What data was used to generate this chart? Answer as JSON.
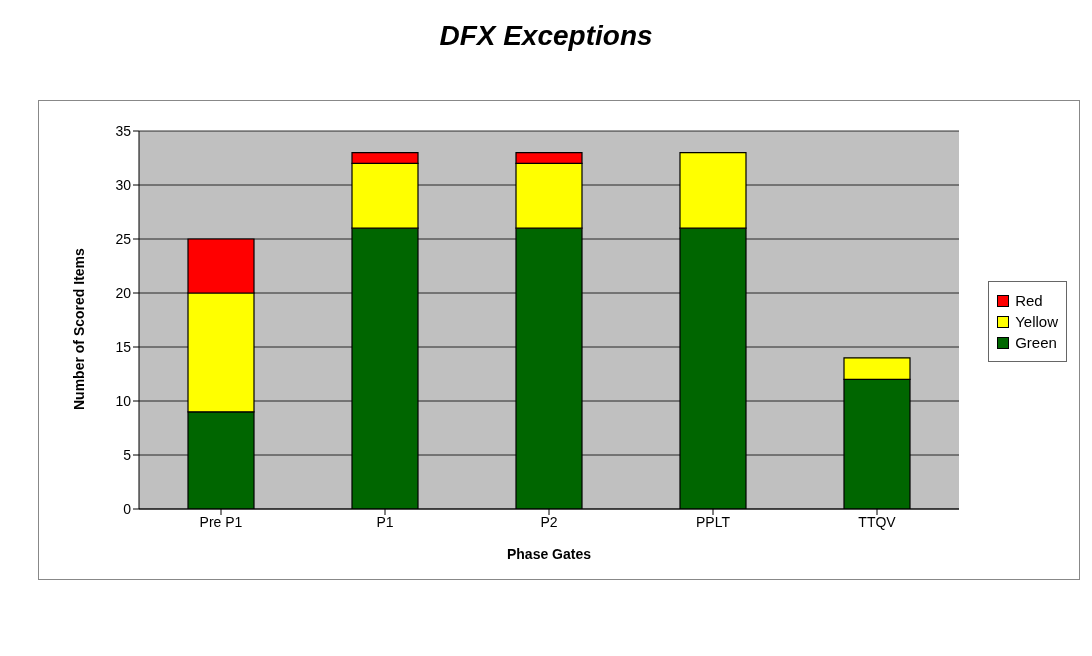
{
  "chart_data": {
    "type": "bar",
    "title": "DFX Exceptions",
    "xlabel": "Phase Gates",
    "ylabel": "Number of Scored Items",
    "categories": [
      "Pre P1",
      "P1",
      "P2",
      "PPLT",
      "TTQV"
    ],
    "stacked": true,
    "series": [
      {
        "name": "Green",
        "color": "#006600",
        "values": [
          9,
          26,
          26,
          26,
          12
        ]
      },
      {
        "name": "Yellow",
        "color": "#ffff00",
        "values": [
          11,
          6,
          6,
          7,
          2
        ]
      },
      {
        "name": "Red",
        "color": "#ff0000",
        "values": [
          5,
          1,
          1,
          0,
          0
        ]
      }
    ],
    "ylim": [
      0,
      35
    ],
    "yticks": [
      0,
      5,
      10,
      15,
      20,
      25,
      30,
      35
    ],
    "grid": "y",
    "legend": "right"
  }
}
